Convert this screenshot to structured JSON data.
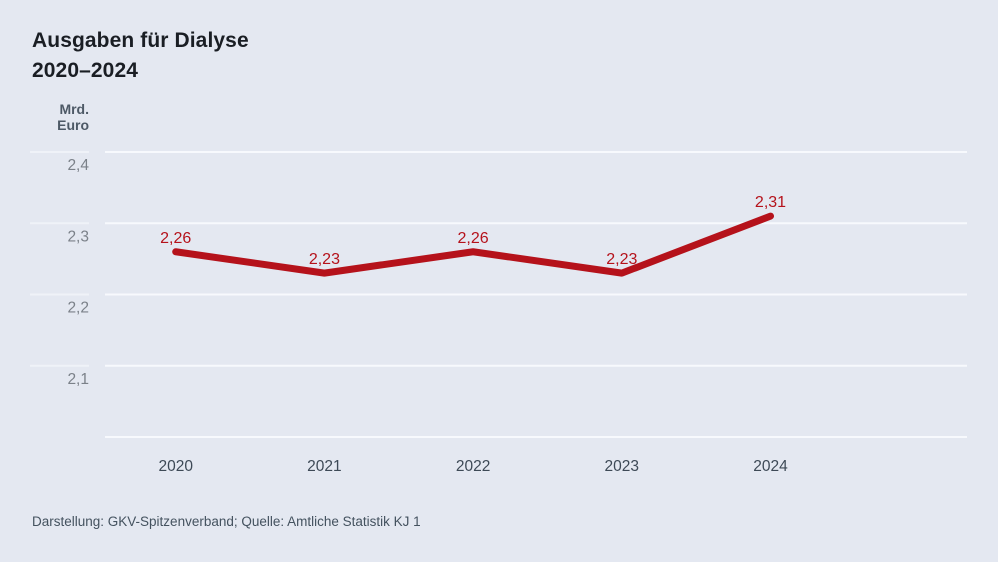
{
  "title": {
    "line1": "Ausgaben für Dialyse",
    "line2": "2020–2024"
  },
  "y_axis": {
    "unit_line1": "Mrd.",
    "unit_line2": "Euro"
  },
  "source": "Darstellung: GKV-Spitzenverband; Quelle: Amtliche Statistik KJ 1",
  "colors": {
    "background": "#e4e8f1",
    "line": "#b5121b",
    "grid": "#f7f9fd",
    "tick_text": "#7b8189",
    "axis_text": "#3d4956",
    "value_label_text": "#b5121b"
  },
  "chart_data": {
    "type": "line",
    "title": "Ausgaben für Dialyse 2020–2024",
    "ylabel": "Mrd. Euro",
    "categories": [
      "2020",
      "2021",
      "2022",
      "2023",
      "2024"
    ],
    "values": [
      2.26,
      2.23,
      2.26,
      2.23,
      2.31
    ],
    "value_labels": [
      "2,26",
      "2,23",
      "2,26",
      "2,23",
      "2,31"
    ],
    "ylim": [
      2.0,
      2.4
    ],
    "yticks": [
      2.4,
      2.3,
      2.2,
      2.1
    ],
    "ytick_labels": [
      "2,4",
      "2,3",
      "2,2",
      "2,1"
    ],
    "grid": true,
    "legend": false,
    "series_color": "#b5121b",
    "source": "Darstellung: GKV-Spitzenverband; Quelle: Amtliche Statistik KJ 1"
  }
}
